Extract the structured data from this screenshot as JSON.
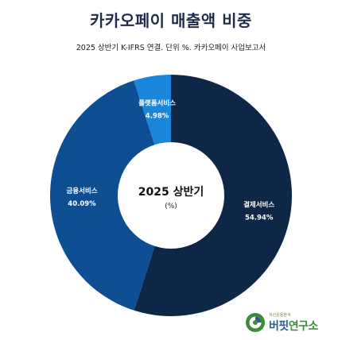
{
  "header": {
    "title": "카카오페이 매출액 비중",
    "subtitle": "2025 상반기 K-IFRS 연결. 단위 %. 카카오페이 사업보고서"
  },
  "chart_data": {
    "type": "pie",
    "center_label": "2025 상반기",
    "center_unit": "(%)",
    "slices": [
      {
        "label": "결제서비스",
        "value": 54.94,
        "value_text": "54.94%",
        "color": "#0f2746"
      },
      {
        "label": "금융서비스",
        "value": 40.09,
        "value_text": "40.09%",
        "color": "#0e4f94"
      },
      {
        "label": "플랫폼서비스",
        "value": 4.98,
        "value_text": "4.98%",
        "color": "#1a86d9"
      }
    ]
  },
  "logo": {
    "tagline": "자산운용분석",
    "name_part1": "버핏",
    "name_part2": "연구소",
    "colors": {
      "green": "#3f8a3a",
      "blue": "#2f5f8f"
    }
  }
}
